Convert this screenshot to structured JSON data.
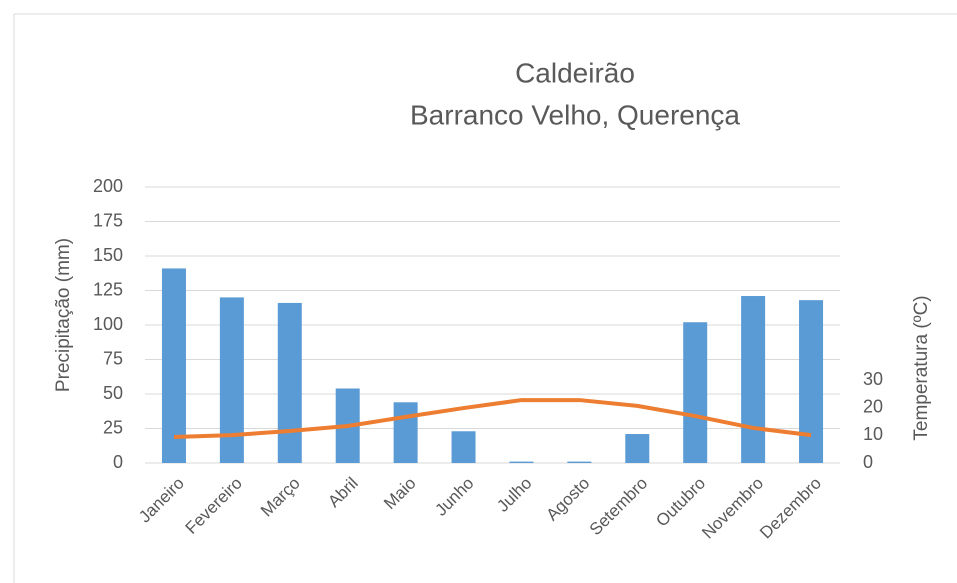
{
  "chart_data": {
    "type": "bar-line",
    "title": "Caldeirão",
    "subtitle": "Barranco Velho, Querença",
    "ylabel": "Precipitação (mm)",
    "y2label": "Temperatura (ºC)",
    "categories": [
      "Janeiro",
      "Fevereiro",
      "Março",
      "Abril",
      "Maio",
      "Junho",
      "Julho",
      "Agosto",
      "Setembro",
      "Outubro",
      "Novembro",
      "Dezembro"
    ],
    "series": [
      {
        "type": "bar",
        "color": "#5b9bd5",
        "values": [
          141,
          120,
          116,
          54,
          44,
          23,
          1,
          1,
          21,
          102,
          121,
          118
        ]
      },
      {
        "type": "line",
        "axis": "y2",
        "color": "#ed7d31",
        "values": [
          9.4,
          10.1,
          11.6,
          13.4,
          16.7,
          19.9,
          22.8,
          22.8,
          20.7,
          17,
          12.7,
          10.1
        ]
      }
    ],
    "ylim": [
      0,
      200
    ],
    "yticks": [
      0,
      25,
      50,
      75,
      100,
      125,
      150,
      175,
      200
    ],
    "y2lim": [
      0,
      100
    ],
    "y2ticks": [
      0,
      10,
      20,
      30
    ],
    "grid": true
  }
}
